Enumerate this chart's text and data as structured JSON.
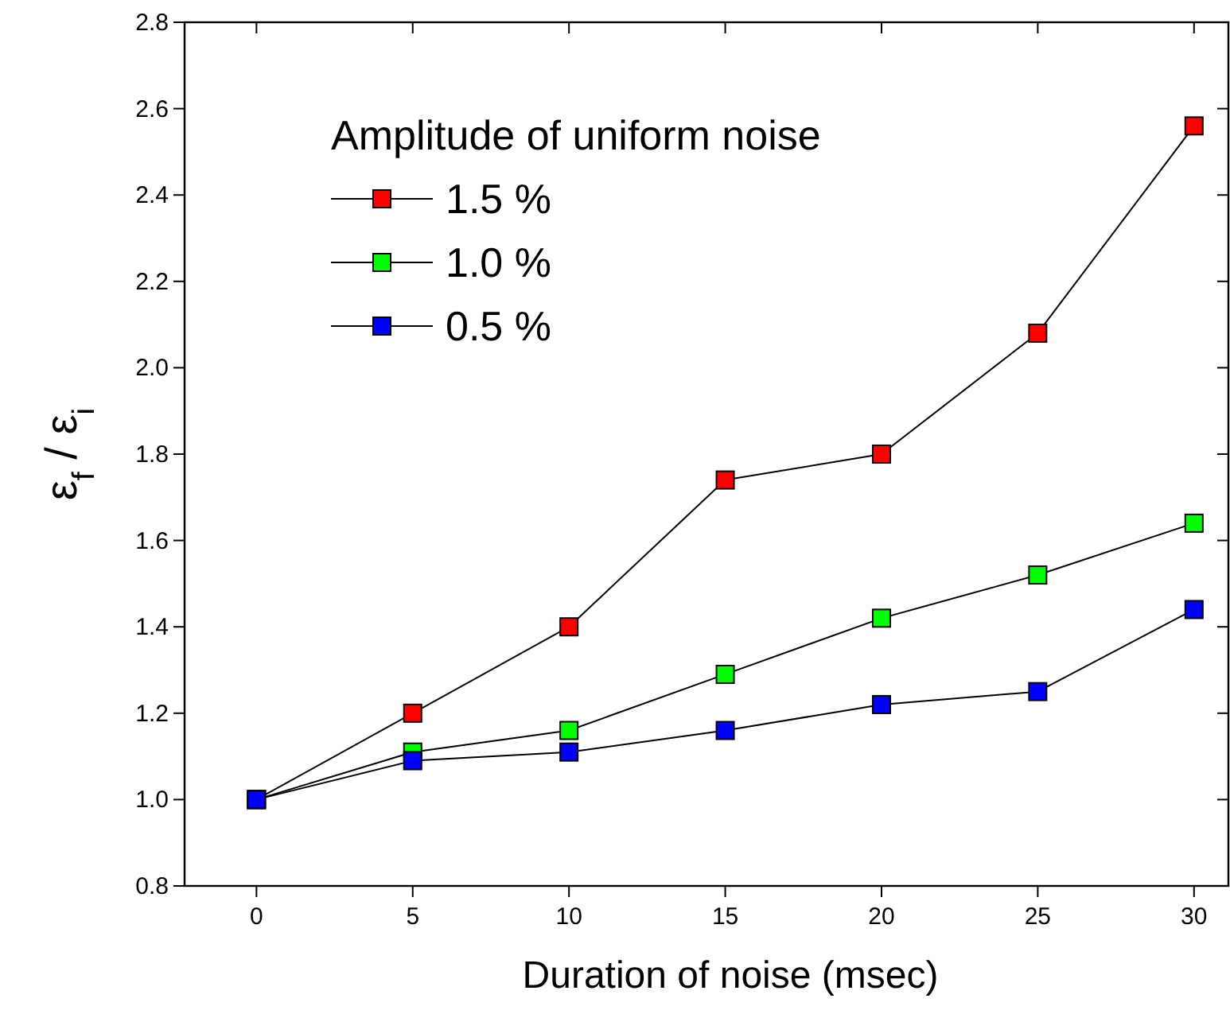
{
  "chart_data": {
    "type": "line",
    "xlabel": "Duration of noise (msec)",
    "ylabel": "ε$_{f}$ / ε$_{i}$",
    "legend_title": "Amplitude of uniform noise",
    "x": [
      0,
      5,
      10,
      15,
      20,
      25,
      30
    ],
    "series": [
      {
        "name": "1.5 %",
        "color": "#ff0000",
        "values": [
          1.0,
          1.2,
          1.4,
          1.74,
          1.8,
          2.08,
          2.56
        ]
      },
      {
        "name": "1.0 %",
        "color": "#00ff00",
        "values": [
          1.0,
          1.11,
          1.16,
          1.29,
          1.42,
          1.52,
          1.64
        ]
      },
      {
        "name": "0.5 %",
        "color": "#0000ff",
        "values": [
          1.0,
          1.09,
          1.11,
          1.16,
          1.22,
          1.25,
          1.44
        ]
      }
    ],
    "xlim": [
      -2.3,
      31.1
    ],
    "ylim": [
      0.8,
      2.8
    ],
    "xticks": [
      0,
      5,
      10,
      15,
      20,
      25,
      30
    ],
    "yticks": [
      0.8,
      {
        "value": 1.0,
        "label": "1.0"
      },
      1.2,
      1.4,
      1.6,
      1.8,
      {
        "value": 2.0,
        "label": "2.0"
      },
      2.2,
      2.4,
      2.6,
      2.8
    ],
    "marker": "square",
    "line_style": "solid",
    "grid": false,
    "legend": "top left"
  }
}
